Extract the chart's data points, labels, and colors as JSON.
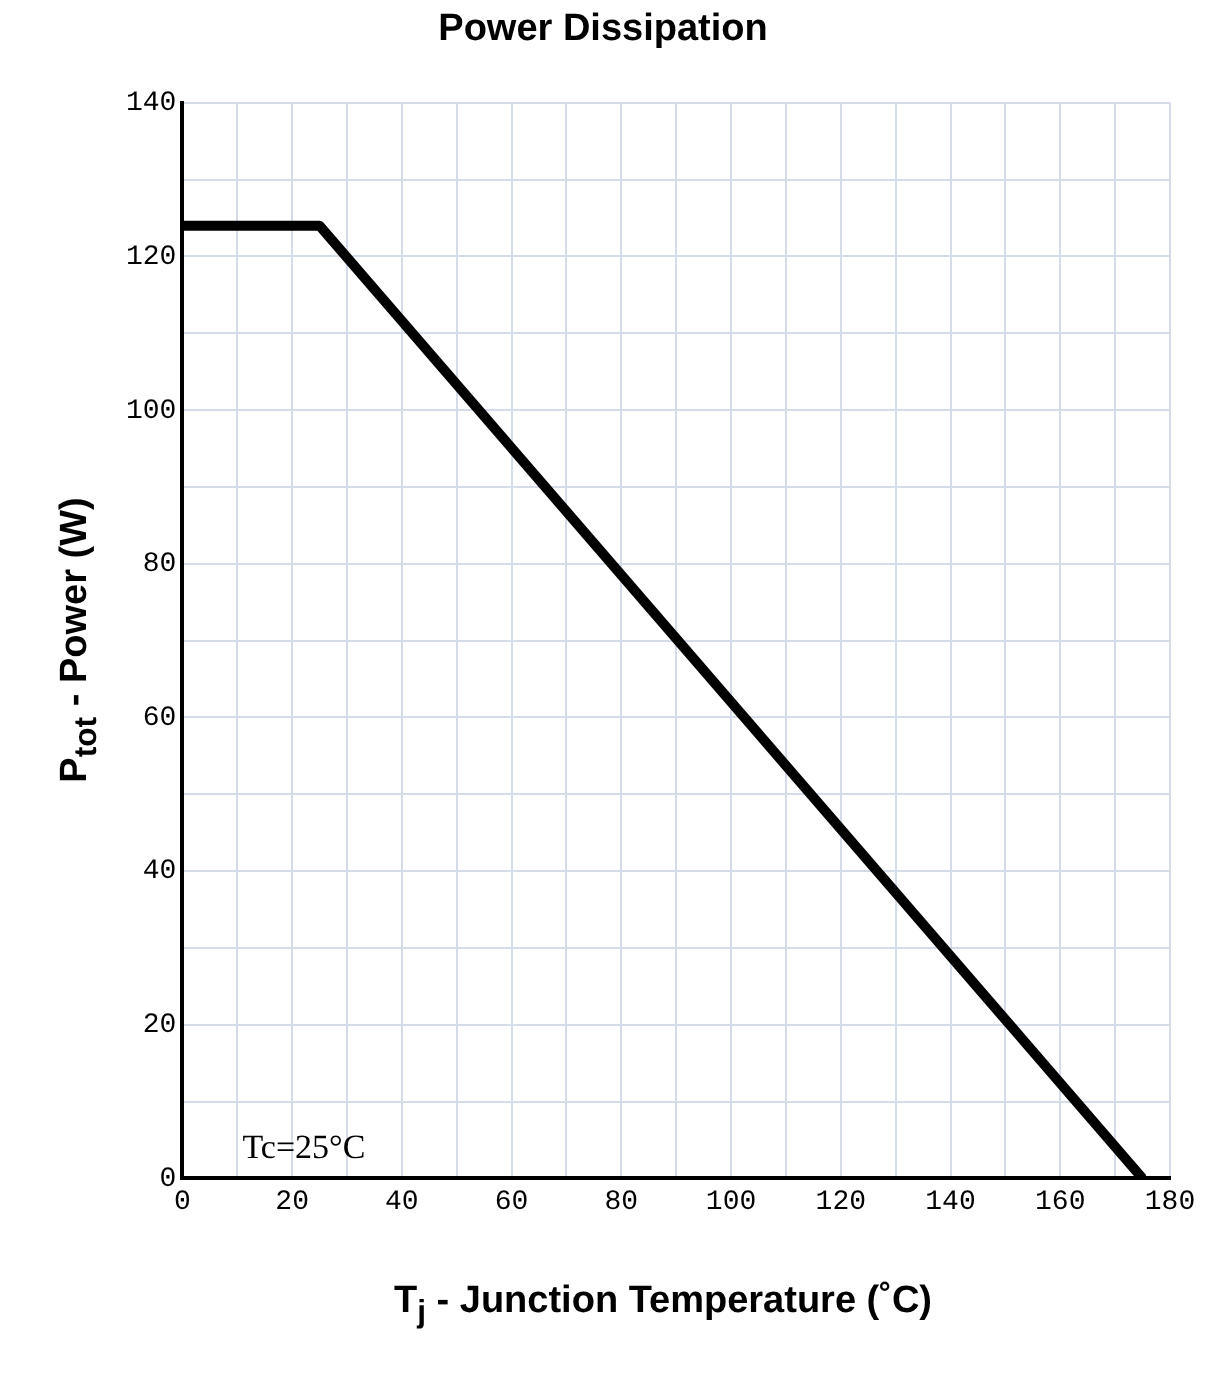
{
  "chart_data": {
    "type": "line",
    "title": "Power Dissipation",
    "xlabel": "T$_{j}$ - Junction Temperature (˚C)",
    "ylabel": "P$_{tot}$ - Power (W)",
    "x": [
      0,
      25,
      175
    ],
    "series": [
      {
        "color": "#000000",
        "values": [
          124,
          124,
          0
        ]
      }
    ],
    "xlim": [
      0,
      180
    ],
    "xticks": [
      0,
      {
        "value": 10,
        "label": null
      },
      20,
      {
        "value": 30,
        "label": null
      },
      40,
      {
        "value": 50,
        "label": null
      },
      60,
      {
        "value": 70,
        "label": null
      },
      80,
      {
        "value": 90,
        "label": null
      },
      100,
      {
        "value": 110,
        "label": null
      },
      120,
      {
        "value": 130,
        "label": null
      },
      140,
      {
        "value": 150,
        "label": null
      },
      160,
      {
        "value": 170,
        "label": null
      },
      180
    ],
    "ylim": [
      0,
      140
    ],
    "yticks": [
      0,
      {
        "value": 10,
        "label": null
      },
      20,
      {
        "value": 30,
        "label": null
      },
      40,
      {
        "value": 50,
        "label": null
      },
      60,
      {
        "value": 70,
        "label": null
      },
      80,
      {
        "value": 90,
        "label": null
      },
      100,
      {
        "value": 110,
        "label": null
      },
      120,
      {
        "value": 130,
        "label": null
      },
      140
    ],
    "grid": true,
    "legend": false,
    "marker": "none",
    "line_style": "solid",
    "annotations": [
      "Tc=25°C"
    ]
  }
}
